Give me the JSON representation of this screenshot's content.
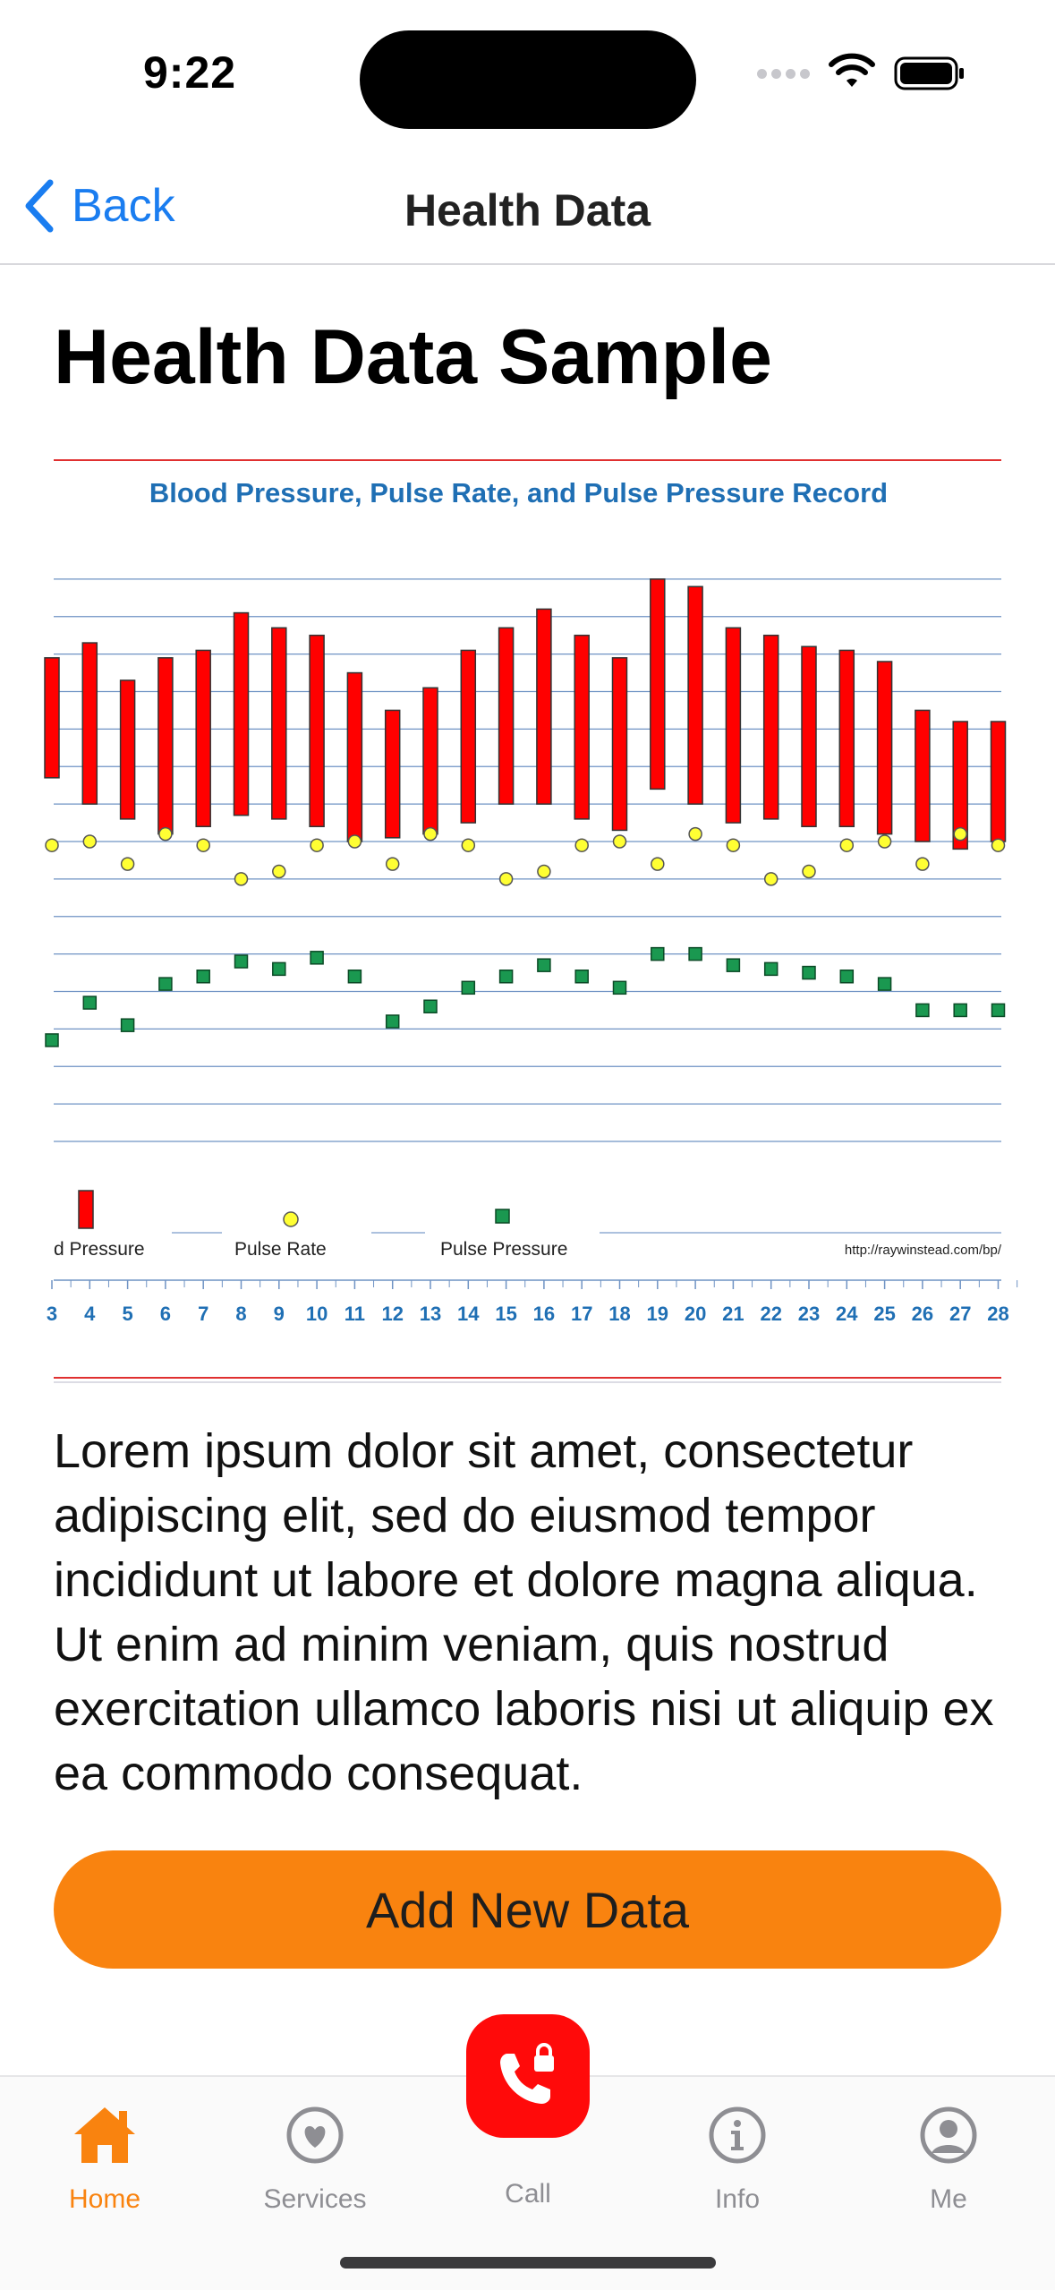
{
  "status": {
    "time": "9:22"
  },
  "nav": {
    "back_label": "Back",
    "title": "Health Data"
  },
  "page": {
    "title": "Health Data Sample",
    "body": "Lorem ipsum dolor sit amet, consectetur adipiscing elit, sed do eiusmod tempor incididunt ut labore et dolore magna aliqua. Ut enim ad minim veniam, quis nostrud exercitation ullamco laboris nisi ut aliquip ex ea commodo consequat.",
    "button_label": "Add New Data"
  },
  "colors": {
    "accent": "#f9830f",
    "link": "#1a7df0",
    "call": "#ff0a0a",
    "bar": "#ff0000",
    "pulse_rate": "#ffff33",
    "pulse_pressure": "#1a9850",
    "chart_title": "#1f6fb4"
  },
  "chart_data": {
    "type": "bar",
    "title": "Blood Pressure, Pulse Rate, and Pulse Pressure Record",
    "x": [
      3,
      4,
      5,
      6,
      7,
      8,
      9,
      10,
      11,
      12,
      13,
      14,
      15,
      16,
      17,
      18,
      19,
      20,
      21,
      22,
      23,
      24,
      25,
      26,
      27,
      28
    ],
    "series": [
      {
        "name": "Blood Pressure",
        "style": "floating-bar",
        "high": [
          154,
          158,
          148,
          154,
          156,
          166,
          162,
          160,
          150,
          140,
          146,
          156,
          162,
          167,
          160,
          154,
          175,
          173,
          162,
          160,
          157,
          156,
          153,
          140,
          137,
          137
        ],
        "low": [
          122,
          115,
          111,
          107,
          109,
          112,
          111,
          109,
          105,
          106,
          107,
          110,
          115,
          115,
          111,
          108,
          119,
          115,
          110,
          111,
          109,
          109,
          107,
          105,
          103,
          105
        ]
      },
      {
        "name": "Pulse Rate",
        "style": "point",
        "values": [
          104,
          105,
          99,
          107,
          104,
          95,
          97,
          104,
          105,
          99,
          107,
          104,
          95,
          97,
          104,
          105,
          99,
          107,
          104,
          95,
          97,
          104,
          105,
          99,
          107,
          104
        ]
      },
      {
        "name": "Pulse Pressure",
        "style": "point",
        "values": [
          52,
          62,
          56,
          67,
          69,
          73,
          71,
          74,
          69,
          57,
          61,
          66,
          69,
          72,
          69,
          66,
          75,
          75,
          72,
          71,
          70,
          69,
          67,
          60,
          60,
          60
        ]
      }
    ],
    "legend": [
      "d Pressure",
      "Pulse Rate",
      "Pulse Pressure"
    ],
    "credit": "http://raywinstead.com/bp/",
    "ylim": [
      25,
      185
    ],
    "grid": true,
    "legend_position": "bottom"
  },
  "tabs": [
    {
      "label": "Home",
      "icon": "house-icon",
      "active": true
    },
    {
      "label": "Services",
      "icon": "heart-circle-icon"
    },
    {
      "label": "Call",
      "icon": "phone-lock-icon"
    },
    {
      "label": "Info",
      "icon": "info-circle-icon"
    },
    {
      "label": "Me",
      "icon": "person-circle-icon"
    }
  ]
}
